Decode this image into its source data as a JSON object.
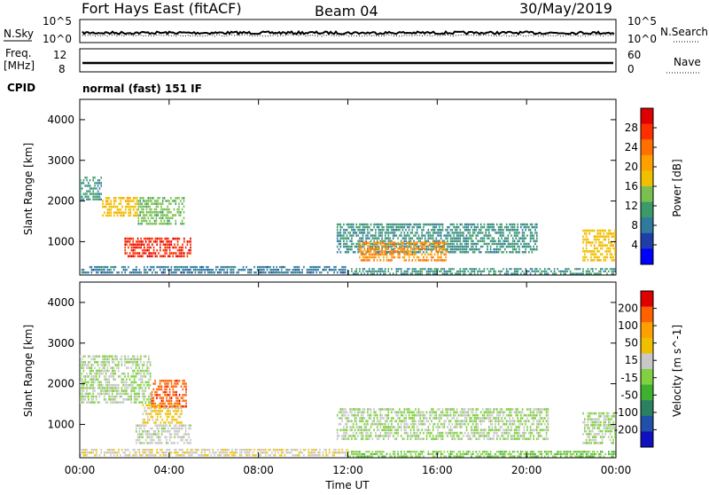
{
  "header": {
    "station": "Fort Hays East (fitACF)",
    "beam": "Beam 04",
    "date": "30/May/2019"
  },
  "strips": {
    "nsky_label": "N.Sky",
    "nsearch_label": "N.Search",
    "nsky_ticks": [
      "10^5",
      "10^0"
    ],
    "nsearch_ticks": [
      "10^5",
      "10^0"
    ],
    "freq_label_line1": "Freq.",
    "freq_label_line2": "[MHz]",
    "freq_ticks": [
      "12",
      "8"
    ],
    "nave_label": "Nave",
    "nave_ticks": [
      "60",
      "0"
    ],
    "cpid_label": "CPID",
    "cpid_text": "normal (fast) 151 IF"
  },
  "chart_data": [
    {
      "type": "heatmap",
      "panel": "power",
      "ylabel": "Slant Range [km]",
      "xlabel": "",
      "yticks": [
        1000,
        2000,
        3000,
        4000
      ],
      "ylim": [
        180,
        4500
      ],
      "xlim_hours": [
        0,
        24
      ],
      "colorbar": {
        "label": "Power [dB]",
        "ticks": [
          "4",
          "8",
          "12",
          "16",
          "20",
          "24",
          "28"
        ],
        "colors": [
          "#0000ff",
          "#1e3fa8",
          "#2f7a9e",
          "#3a9a6a",
          "#7ac050",
          "#f0c000",
          "#ffa000",
          "#ff7000",
          "#ff3000",
          "#e00000"
        ],
        "range": [
          0,
          32
        ]
      },
      "regions": [
        {
          "t0": 0.0,
          "t1": 1.0,
          "r0": 2000,
          "r1": 2600,
          "level": 10
        },
        {
          "t0": 1.0,
          "t1": 2.6,
          "r0": 1600,
          "r1": 2100,
          "level": 18
        },
        {
          "t0": 2.6,
          "t1": 4.7,
          "r0": 1400,
          "r1": 2100,
          "level": 14
        },
        {
          "t0": 2.0,
          "t1": 5.0,
          "r0": 600,
          "r1": 1100,
          "level": 28
        },
        {
          "t0": 0.0,
          "t1": 12.0,
          "r0": 200,
          "r1": 400,
          "level": 8
        },
        {
          "t0": 11.5,
          "t1": 20.5,
          "r0": 700,
          "r1": 1450,
          "level": 10
        },
        {
          "t0": 12.5,
          "t1": 16.5,
          "r0": 500,
          "r1": 1000,
          "level": 22
        },
        {
          "t0": 22.5,
          "t1": 24.0,
          "r0": 500,
          "r1": 1300,
          "level": 18
        },
        {
          "t0": 12.0,
          "t1": 24.0,
          "r0": 180,
          "r1": 350,
          "level": 10
        }
      ]
    },
    {
      "type": "heatmap",
      "panel": "velocity",
      "ylabel": "Slant Range [km]",
      "xlabel": "Time UT",
      "yticks": [
        1000,
        2000,
        3000,
        4000
      ],
      "ylim": [
        180,
        4500
      ],
      "xlim_hours": [
        0,
        24
      ],
      "xticks": [
        "00:00",
        "04:00",
        "08:00",
        "12:00",
        "16:00",
        "20:00",
        "00:00"
      ],
      "colorbar": {
        "label": "Velocity [m s^-1]",
        "ticks": [
          "200",
          "100",
          "50",
          "15",
          "-15",
          "-50",
          "-100",
          "-200"
        ],
        "colors": [
          "#1010c0",
          "#2050a8",
          "#2a8060",
          "#40b030",
          "#80d040",
          "#c8c8c8",
          "#f0c000",
          "#ffa000",
          "#ff6000",
          "#e00000"
        ],
        "range": [
          -250,
          250
        ]
      },
      "regions": [
        {
          "t0": 0.0,
          "t1": 3.2,
          "r0": 1500,
          "r1": 2700,
          "level": 0
        },
        {
          "t0": 3.2,
          "t1": 4.8,
          "r0": 1400,
          "r1": 2100,
          "level": 180
        },
        {
          "t0": 2.8,
          "t1": 4.6,
          "r0": 1000,
          "r1": 1500,
          "level": 60
        },
        {
          "t0": 2.5,
          "t1": 5.0,
          "r0": 500,
          "r1": 1000,
          "level": 20
        },
        {
          "t0": 0.0,
          "t1": 12.0,
          "r0": 200,
          "r1": 400,
          "level": 40
        },
        {
          "t0": 11.5,
          "t1": 21.0,
          "r0": 600,
          "r1": 1400,
          "level": 0
        },
        {
          "t0": 12.0,
          "t1": 24.0,
          "r0": 180,
          "r1": 350,
          "level": -40
        },
        {
          "t0": 22.5,
          "t1": 24.0,
          "r0": 500,
          "r1": 1300,
          "level": 0
        }
      ]
    }
  ]
}
